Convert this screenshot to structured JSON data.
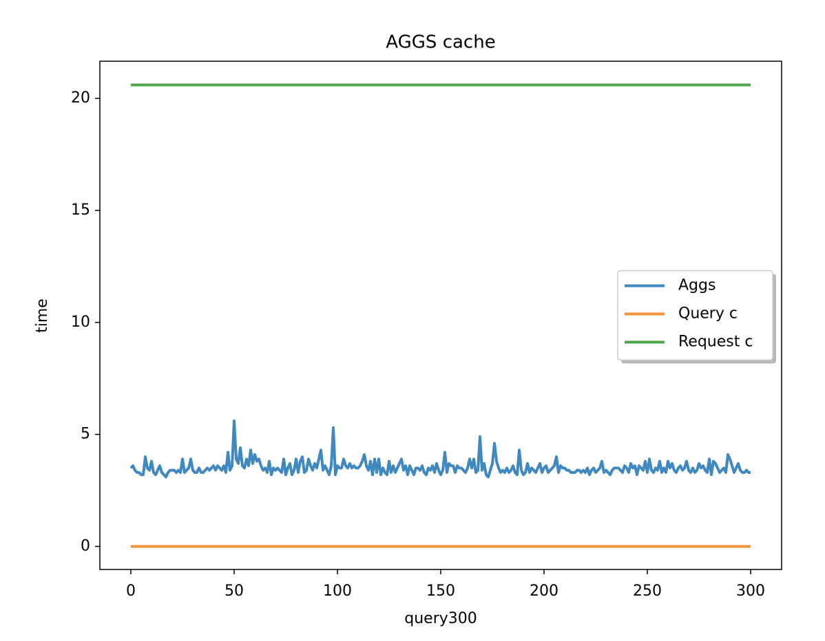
{
  "chart_data": {
    "type": "line",
    "title": "AGGS cache",
    "x_label": "query300",
    "y_label": "time",
    "xlim": [
      -15,
      315
    ],
    "ylim": [
      -1.03,
      21.66
    ],
    "xticks": [
      0,
      50,
      100,
      150,
      200,
      250,
      300
    ],
    "yticks": [
      0,
      5,
      10,
      15,
      20
    ],
    "grid": false,
    "legend": "center right",
    "series": [
      {
        "name": "Aggs",
        "color": "#3f88c0",
        "x": [
          0,
          1,
          2,
          3,
          4,
          5,
          6,
          7,
          8,
          9,
          10,
          11,
          12,
          13,
          14,
          15,
          16,
          17,
          18,
          19,
          20,
          21,
          22,
          23,
          24,
          25,
          26,
          27,
          28,
          29,
          30,
          31,
          32,
          33,
          34,
          35,
          36,
          37,
          38,
          39,
          40,
          41,
          42,
          43,
          44,
          45,
          46,
          47,
          48,
          49,
          50,
          51,
          52,
          53,
          54,
          55,
          56,
          57,
          58,
          59,
          60,
          61,
          62,
          63,
          64,
          65,
          66,
          67,
          68,
          69,
          70,
          71,
          72,
          73,
          74,
          75,
          76,
          77,
          78,
          79,
          80,
          81,
          82,
          83,
          84,
          85,
          86,
          87,
          88,
          89,
          90,
          91,
          92,
          93,
          94,
          95,
          96,
          97,
          98,
          99,
          100,
          101,
          102,
          103,
          104,
          105,
          106,
          107,
          108,
          109,
          110,
          111,
          112,
          113,
          114,
          115,
          116,
          117,
          118,
          119,
          120,
          121,
          122,
          123,
          124,
          125,
          126,
          127,
          128,
          129,
          130,
          131,
          132,
          133,
          134,
          135,
          136,
          137,
          138,
          139,
          140,
          141,
          142,
          143,
          144,
          145,
          146,
          147,
          148,
          149,
          150,
          151,
          152,
          153,
          154,
          155,
          156,
          157,
          158,
          159,
          160,
          161,
          162,
          163,
          164,
          165,
          166,
          167,
          168,
          169,
          170,
          171,
          172,
          173,
          174,
          175,
          176,
          177,
          178,
          179,
          180,
          181,
          182,
          183,
          184,
          185,
          186,
          187,
          188,
          189,
          190,
          191,
          192,
          193,
          194,
          195,
          196,
          197,
          198,
          199,
          200,
          201,
          202,
          203,
          204,
          205,
          206,
          207,
          208,
          209,
          210,
          211,
          212,
          213,
          214,
          215,
          216,
          217,
          218,
          219,
          220,
          221,
          222,
          223,
          224,
          225,
          226,
          227,
          228,
          229,
          230,
          231,
          232,
          233,
          234,
          235,
          236,
          237,
          238,
          239,
          240,
          241,
          242,
          243,
          244,
          245,
          246,
          247,
          248,
          249,
          250,
          251,
          252,
          253,
          254,
          255,
          256,
          257,
          258,
          259,
          260,
          261,
          262,
          263,
          264,
          265,
          266,
          267,
          268,
          269,
          270,
          271,
          272,
          273,
          274,
          275,
          276,
          277,
          278,
          279,
          280,
          281,
          282,
          283,
          284,
          285,
          286,
          287,
          288,
          289,
          290,
          291,
          292,
          293,
          294,
          295,
          296,
          297,
          298,
          299,
          300
        ],
        "values": [
          3.5,
          3.6,
          3.4,
          3.3,
          3.3,
          3.2,
          3.2,
          4.0,
          3.5,
          3.4,
          3.8,
          3.3,
          3.2,
          3.4,
          3.6,
          3.3,
          3.2,
          3.1,
          3.3,
          3.4,
          3.4,
          3.4,
          3.3,
          3.4,
          3.3,
          3.9,
          3.3,
          3.4,
          3.5,
          3.9,
          3.4,
          3.3,
          3.3,
          3.5,
          3.3,
          3.3,
          3.4,
          3.5,
          3.4,
          3.5,
          3.6,
          3.4,
          3.6,
          3.5,
          3.4,
          3.6,
          3.3,
          4.2,
          3.4,
          3.6,
          5.6,
          3.9,
          3.7,
          4.4,
          3.6,
          3.5,
          3.9,
          3.6,
          4.3,
          3.7,
          4.1,
          3.8,
          3.9,
          3.6,
          3.4,
          3.5,
          3.3,
          3.8,
          3.2,
          3.5,
          3.4,
          3.5,
          3.4,
          3.3,
          3.9,
          3.2,
          3.5,
          3.7,
          3.2,
          3.4,
          3.9,
          3.3,
          3.8,
          4.0,
          3.3,
          3.4,
          3.9,
          3.6,
          3.4,
          3.7,
          3.5,
          3.9,
          4.3,
          3.4,
          3.6,
          3.4,
          3.2,
          3.6,
          5.3,
          3.2,
          3.6,
          3.5,
          3.5,
          3.9,
          3.6,
          3.5,
          3.7,
          3.5,
          3.6,
          3.5,
          3.5,
          3.6,
          3.8,
          4.1,
          3.6,
          3.4,
          3.8,
          3.2,
          3.9,
          3.3,
          3.9,
          3.2,
          3.5,
          3.3,
          3.2,
          3.8,
          3.3,
          3.6,
          3.3,
          3.5,
          3.7,
          3.9,
          3.4,
          3.6,
          3.2,
          3.6,
          3.4,
          3.2,
          3.5,
          3.5,
          3.4,
          3.6,
          3.3,
          3.2,
          3.5,
          3.4,
          3.6,
          3.3,
          3.7,
          3.4,
          3.2,
          3.4,
          4.2,
          3.3,
          3.7,
          3.6,
          3.6,
          3.3,
          3.6,
          3.5,
          3.5,
          3.4,
          3.3,
          3.5,
          3.9,
          3.5,
          3.9,
          3.3,
          3.4,
          4.9,
          3.4,
          3.7,
          3.2,
          3.1,
          3.4,
          3.7,
          4.6,
          3.8,
          3.5,
          3.3,
          3.4,
          3.3,
          3.5,
          3.3,
          3.4,
          3.6,
          3.3,
          3.2,
          4.3,
          3.4,
          3.2,
          3.3,
          3.7,
          3.3,
          3.5,
          3.4,
          3.3,
          3.5,
          3.7,
          3.3,
          3.5,
          3.6,
          3.3,
          3.4,
          3.5,
          3.6,
          4.0,
          3.3,
          3.6,
          3.5,
          3.5,
          3.4,
          3.4,
          3.3,
          3.3,
          3.3,
          3.4,
          3.4,
          3.3,
          3.4,
          3.3,
          3.5,
          3.2,
          3.4,
          3.5,
          3.3,
          3.4,
          3.5,
          3.8,
          3.3,
          3.4,
          3.3,
          3.2,
          3.4,
          3.5,
          3.5,
          3.5,
          3.4,
          3.3,
          3.6,
          3.5,
          3.3,
          3.7,
          3.5,
          3.6,
          3.2,
          3.6,
          3.5,
          3.4,
          3.8,
          3.3,
          3.9,
          3.4,
          3.3,
          3.5,
          3.4,
          3.8,
          3.3,
          3.5,
          3.3,
          3.8,
          3.5,
          3.7,
          3.4,
          3.3,
          3.5,
          3.6,
          3.4,
          3.5,
          3.8,
          3.4,
          3.3,
          3.5,
          3.3,
          3.4,
          3.7,
          3.5,
          3.6,
          3.4,
          3.3,
          3.9,
          3.2,
          3.8,
          3.7,
          3.5,
          3.3,
          3.4,
          3.5,
          3.3,
          4.1,
          3.9,
          3.6,
          3.3,
          3.5,
          3.7,
          3.4,
          3.3,
          3.3,
          3.4,
          3.3,
          3.3
        ]
      },
      {
        "name": "Query c",
        "color": "#f0953a",
        "x": [
          0,
          300
        ],
        "values": [
          0,
          0
        ]
      },
      {
        "name": "Request c",
        "color": "#4fa64a",
        "x": [
          0,
          300
        ],
        "values": [
          20.6,
          20.6
        ]
      }
    ]
  }
}
